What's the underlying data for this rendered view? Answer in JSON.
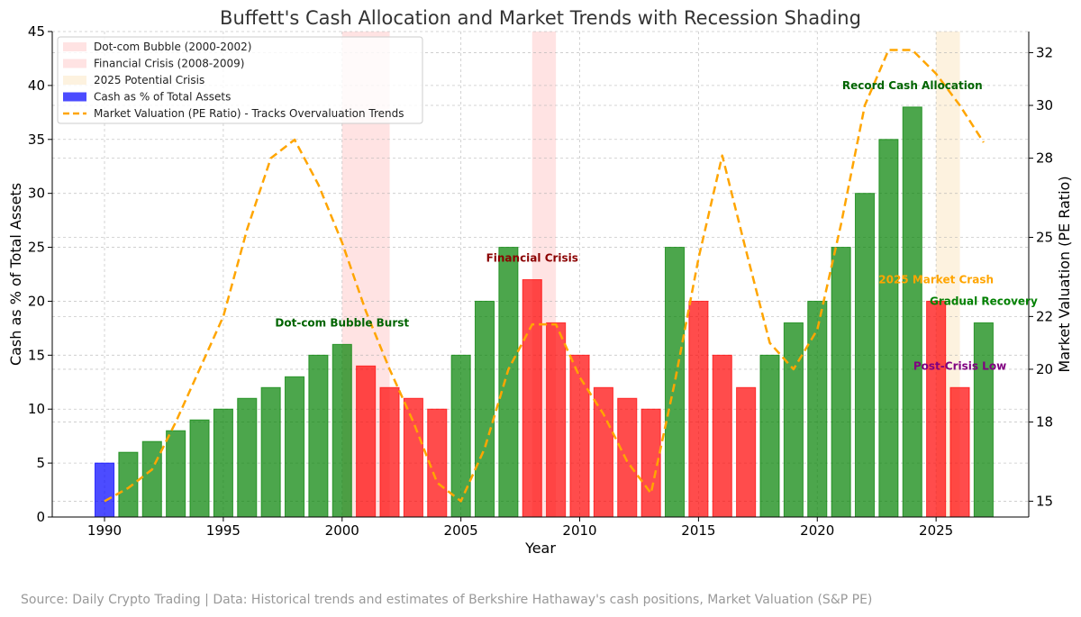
{
  "chart_data": {
    "type": "bar",
    "title": "Buffett's Cash Allocation and Market Trends with Recession Shading",
    "xlabel": "Year",
    "ylabel": "Cash as % of Total Assets",
    "y2label": "Market Valuation (PE Ratio)",
    "xlim": [
      1987.8,
      2028.9
    ],
    "ylim": [
      0,
      45
    ],
    "y2lim": [
      14.4,
      32.8
    ],
    "grid": true,
    "legend_position": "top-left",
    "x_ticks": [
      1990,
      1995,
      2000,
      2005,
      2010,
      2015,
      2020,
      2025
    ],
    "y_ticks": [
      0,
      5,
      10,
      15,
      20,
      25,
      30,
      35,
      40,
      45
    ],
    "y2_ticks": [
      15,
      18,
      20,
      22,
      25,
      28,
      30,
      32
    ],
    "shading": [
      {
        "name": "Dot-com Bubble (2000-2002)",
        "start": 2000,
        "end": 2002,
        "color": "#ffc0c0"
      },
      {
        "name": "Financial Crisis (2008-2009)",
        "start": 2008,
        "end": 2009,
        "color": "#ffc0c0"
      },
      {
        "name": "2025 Potential Crisis",
        "start": 2025,
        "end": 2026,
        "color": "#fbe3b8"
      }
    ],
    "bars": {
      "name": "Cash as % of Total Assets",
      "legend_color": "#0000ff",
      "years": [
        1990,
        1991,
        1992,
        1993,
        1994,
        1995,
        1996,
        1997,
        1998,
        1999,
        2000,
        2001,
        2002,
        2003,
        2004,
        2005,
        2006,
        2007,
        2008,
        2009,
        2010,
        2011,
        2012,
        2013,
        2014,
        2015,
        2016,
        2017,
        2018,
        2019,
        2020,
        2021,
        2022,
        2023,
        2024,
        2025,
        2026,
        2027
      ],
      "values": [
        5,
        6,
        7,
        8,
        9,
        10,
        11,
        12,
        13,
        15,
        16,
        14,
        12,
        11,
        10,
        15,
        20,
        25,
        22,
        18,
        15,
        12,
        11,
        10,
        25,
        20,
        15,
        12,
        15,
        18,
        20,
        25,
        30,
        35,
        38,
        20,
        12,
        18
      ],
      "colors": [
        "#0000ff",
        "#008000",
        "#008000",
        "#008000",
        "#008000",
        "#008000",
        "#008000",
        "#008000",
        "#008000",
        "#008000",
        "#008000",
        "#ff0000",
        "#ff0000",
        "#ff0000",
        "#ff0000",
        "#008000",
        "#008000",
        "#008000",
        "#ff0000",
        "#ff0000",
        "#ff0000",
        "#ff0000",
        "#ff0000",
        "#ff0000",
        "#008000",
        "#ff0000",
        "#ff0000",
        "#ff0000",
        "#008000",
        "#008000",
        "#008000",
        "#008000",
        "#008000",
        "#008000",
        "#008000",
        "#ff0000",
        "#ff0000",
        "#008000"
      ]
    },
    "line": {
      "name": "Market Valuation (PE Ratio) - Tracks Overvaluation Trends",
      "color": "#ffa500",
      "x": [
        1990,
        1991,
        1992,
        1993,
        1994,
        1995,
        1996,
        1997,
        1998,
        1999,
        2000,
        2001,
        2002,
        2003,
        2004,
        2005,
        2006,
        2007,
        2008,
        2009,
        2010,
        2011,
        2012,
        2013,
        2014,
        2015,
        2016,
        2017,
        2018,
        2019,
        2020,
        2021,
        2022,
        2023,
        2024,
        2025,
        2026,
        2027
      ],
      "y": [
        15,
        15.5,
        16.2,
        18,
        20,
        22,
        25.3,
        28,
        28.7,
        27,
        24.8,
        22.2,
        20,
        18,
        15.7,
        15,
        17,
        20,
        21.7,
        21.7,
        19.7,
        18.3,
        16.5,
        15.3,
        19.5,
        24.2,
        28.1,
        24.5,
        21,
        20,
        21.5,
        25.5,
        30,
        32.1,
        32.1,
        31.2,
        30,
        28.6
      ]
    },
    "annotations": [
      {
        "text": "Dot-com Bubble Burst",
        "x": 2000,
        "y": 18,
        "color": "#006400"
      },
      {
        "text": "Financial Crisis",
        "x": 2008,
        "y": 24,
        "color": "#8b0000"
      },
      {
        "text": "Record Cash Allocation",
        "x": 2024,
        "y": 40,
        "color": "#006400"
      },
      {
        "text": "2025 Market Crash",
        "x": 2025,
        "y": 22,
        "color": "#ffa500"
      },
      {
        "text": "Gradual Recovery",
        "x": 2027,
        "y": 20,
        "color": "#008000"
      },
      {
        "text": "Post-Crisis Low",
        "x": 2026,
        "y": 14,
        "color": "#800080"
      }
    ]
  },
  "footer": {
    "source": "Source: Daily Crypto Trading | Data: Historical trends and estimates of Berkshire Hathaway's cash positions, Market Valuation (S&P PE)"
  }
}
